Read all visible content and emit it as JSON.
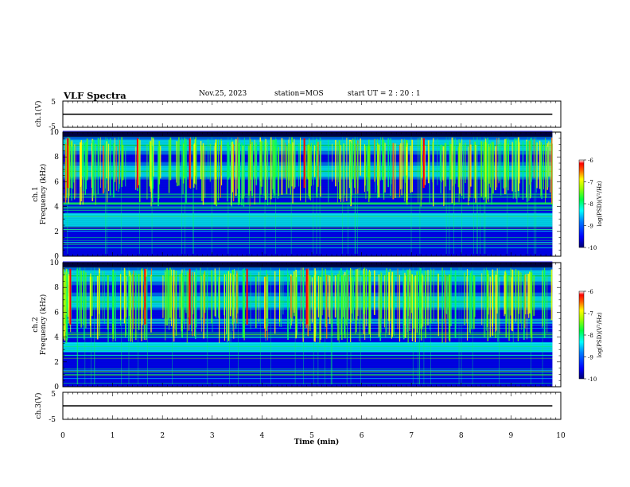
{
  "header": {
    "title": "VLF Spectra",
    "date": "Nov.25, 2023",
    "station": "station=MOS",
    "start_ut": "start  UT =   2  : 20 : 1"
  },
  "colors": {
    "background": "#ffffff",
    "axes": "#000000",
    "spectrogram_floor": "#000a6e",
    "colormap": [
      "#00006e",
      "#0000ff",
      "#0080ff",
      "#00ffff",
      "#00ff60",
      "#60ff00",
      "#ffff00",
      "#ff8000",
      "#ff0000",
      "#ffffff"
    ]
  },
  "chart_data": [
    {
      "id": "ch1",
      "type": "line",
      "ylabel": "ch.1(V)",
      "ylim": [
        -5,
        5
      ],
      "yticks": [
        "5",
        "-5"
      ],
      "x": [
        0,
        9.83
      ],
      "y": [
        0,
        0
      ],
      "xlim": [
        0,
        10
      ]
    },
    {
      "id": "ch1-spectrogram",
      "type": "heatmap",
      "ylabel": "ch.1\nFrequency (kHz)",
      "ylim": [
        0,
        10
      ],
      "yticks": [
        "0",
        "2",
        "4",
        "6",
        "8",
        "10"
      ],
      "xlim": [
        0,
        10
      ],
      "data_extent_min": 9.83,
      "colorbar": {
        "label": "log(PSD)(V²/Hz)",
        "range": [
          -10,
          -6
        ],
        "ticks": [
          "-6",
          "-7",
          "-8",
          "-9",
          "-10"
        ]
      },
      "features": {
        "active_band_khz": [
          5.5,
          10
        ],
        "hiss_band_khz": [
          2.4,
          3.5
        ],
        "strong_bursts_min": [
          0.1,
          1.5,
          2.55,
          4.85,
          7.25
        ]
      }
    },
    {
      "id": "ch2-spectrogram",
      "type": "heatmap",
      "ylabel": "ch.2\nFrequency (kHz)",
      "ylim": [
        0,
        10
      ],
      "yticks": [
        "0",
        "2",
        "4",
        "6",
        "8",
        "10"
      ],
      "xlim": [
        0,
        10
      ],
      "data_extent_min": 9.83,
      "colorbar": {
        "label": "log(PSD)(V²/Hz)",
        "range": [
          -10,
          -6
        ],
        "ticks": [
          "-6",
          "-7",
          "-8",
          "-9",
          "-10"
        ]
      },
      "features": {
        "active_band_khz": [
          5.0,
          10
        ],
        "hiss_band_khz": [
          2.8,
          3.6
        ],
        "strong_bursts_min": [
          0.15,
          1.65,
          2.55,
          3.7,
          4.9
        ]
      }
    },
    {
      "id": "ch3",
      "type": "line",
      "ylabel": "ch.3(V)",
      "ylim": [
        -5,
        5
      ],
      "yticks": [
        "5",
        "-5"
      ],
      "x": [
        0,
        9.83
      ],
      "y": [
        0,
        0
      ],
      "xlim": [
        0,
        10
      ]
    }
  ],
  "xaxis": {
    "label": "Time  (min)",
    "ticks": [
      "0",
      "1",
      "2",
      "3",
      "4",
      "5",
      "6",
      "7",
      "8",
      "9",
      "10"
    ]
  }
}
